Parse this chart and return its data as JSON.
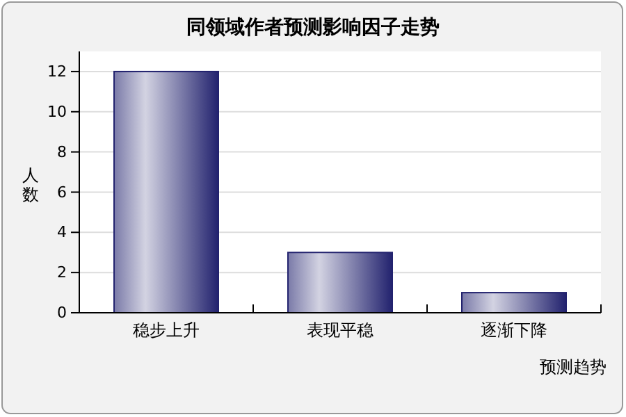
{
  "chart_data": {
    "type": "bar",
    "title": "同领域作者预测影响因子走势",
    "xlabel": "预测趋势",
    "ylabel": "人数",
    "categories": [
      "稳步上升",
      "表现平稳",
      "逐渐下降"
    ],
    "values": [
      12,
      3,
      1
    ],
    "color": "#22226e",
    "ylim": [
      0,
      13
    ],
    "yticks": [
      0,
      2,
      4,
      6,
      8,
      10,
      12
    ],
    "grid": "y"
  }
}
